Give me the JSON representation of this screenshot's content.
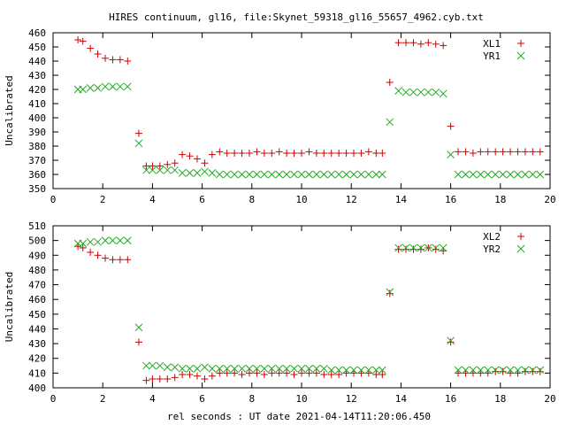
{
  "title": "HIRES continuum, gl16, file:Skynet_59318_gl16_55657_4962.cyb.txt",
  "xlabel": "rel seconds : UT date 2021-04-14T11:20:06.450",
  "colors": {
    "plus": "#cc0000",
    "cross": "#22aa22",
    "axis": "#000000"
  },
  "chart_data": [
    {
      "type": "scatter",
      "ylabel": "Uncalibrated",
      "xlim": [
        0,
        20
      ],
      "ylim": [
        350,
        460
      ],
      "xticks": [
        0,
        2,
        4,
        6,
        8,
        10,
        12,
        14,
        16,
        18,
        20
      ],
      "yticks": [
        350,
        360,
        370,
        380,
        390,
        400,
        410,
        420,
        430,
        440,
        450,
        460
      ],
      "legend_position": "top-right",
      "series": [
        {
          "name": "XL1",
          "marker": "plus",
          "color": "#cc0000",
          "x": [
            1.0,
            1.2,
            1.5,
            1.8,
            2.1,
            2.4,
            2.7,
            3.0,
            3.45,
            3.75,
            4.0,
            4.3,
            4.6,
            4.9,
            5.2,
            5.5,
            5.8,
            6.1,
            6.4,
            6.7,
            7.0,
            7.3,
            7.6,
            7.9,
            8.2,
            8.5,
            8.8,
            9.1,
            9.4,
            9.7,
            10.0,
            10.3,
            10.6,
            10.9,
            11.2,
            11.5,
            11.8,
            12.1,
            12.4,
            12.7,
            13.0,
            13.25,
            13.55,
            13.9,
            14.2,
            14.5,
            14.8,
            15.1,
            15.4,
            15.7,
            16.0,
            16.3,
            16.6,
            16.9,
            17.2,
            17.5,
            17.8,
            18.1,
            18.4,
            18.7,
            19.0,
            19.3,
            19.6
          ],
          "y": [
            455,
            454,
            449,
            445,
            442,
            441,
            441,
            440,
            389,
            366,
            366,
            366,
            367,
            368,
            374,
            373,
            371,
            368,
            374,
            376,
            375,
            375,
            375,
            375,
            376,
            375,
            375,
            376,
            375,
            375,
            375,
            376,
            375,
            375,
            375,
            375,
            375,
            375,
            375,
            376,
            375,
            375,
            425,
            453,
            453,
            453,
            452,
            453,
            452,
            451,
            394,
            376,
            376,
            375,
            376,
            376,
            376,
            376,
            376,
            376,
            376,
            376,
            376
          ]
        },
        {
          "name": "YR1",
          "marker": "cross",
          "color": "#22aa22",
          "x": [
            1.0,
            1.2,
            1.5,
            1.8,
            2.1,
            2.4,
            2.7,
            3.0,
            3.45,
            3.75,
            4.0,
            4.3,
            4.6,
            4.9,
            5.2,
            5.5,
            5.8,
            6.1,
            6.4,
            6.7,
            7.0,
            7.3,
            7.6,
            7.9,
            8.2,
            8.5,
            8.8,
            9.1,
            9.4,
            9.7,
            10.0,
            10.3,
            10.6,
            10.9,
            11.2,
            11.5,
            11.8,
            12.1,
            12.4,
            12.7,
            13.0,
            13.25,
            13.55,
            13.9,
            14.2,
            14.5,
            14.8,
            15.1,
            15.4,
            15.7,
            16.0,
            16.3,
            16.6,
            16.9,
            17.2,
            17.5,
            17.8,
            18.1,
            18.4,
            18.7,
            19.0,
            19.3,
            19.6
          ],
          "y": [
            420,
            420,
            421,
            421,
            422,
            422,
            422,
            422,
            382,
            363,
            363,
            363,
            363,
            363,
            361,
            361,
            361,
            362,
            361,
            360,
            360,
            360,
            360,
            360,
            360,
            360,
            360,
            360,
            360,
            360,
            360,
            360,
            360,
            360,
            360,
            360,
            360,
            360,
            360,
            360,
            360,
            360,
            397,
            419,
            418,
            418,
            418,
            418,
            418,
            417,
            374,
            360,
            360,
            360,
            360,
            360,
            360,
            360,
            360,
            360,
            360,
            360,
            360
          ]
        }
      ]
    },
    {
      "type": "scatter",
      "ylabel": "Uncalibrated",
      "xlim": [
        0,
        20
      ],
      "ylim": [
        400,
        510
      ],
      "xticks": [
        0,
        2,
        4,
        6,
        8,
        10,
        12,
        14,
        16,
        18,
        20
      ],
      "yticks": [
        400,
        410,
        420,
        430,
        440,
        450,
        460,
        470,
        480,
        490,
        500,
        510
      ],
      "legend_position": "top-right",
      "series": [
        {
          "name": "XL2",
          "marker": "plus",
          "color": "#cc0000",
          "x": [
            1.0,
            1.2,
            1.5,
            1.8,
            2.1,
            2.4,
            2.7,
            3.0,
            3.45,
            3.75,
            4.0,
            4.3,
            4.6,
            4.9,
            5.2,
            5.5,
            5.8,
            6.1,
            6.4,
            6.7,
            7.0,
            7.3,
            7.6,
            7.9,
            8.2,
            8.5,
            8.8,
            9.1,
            9.4,
            9.7,
            10.0,
            10.3,
            10.6,
            10.9,
            11.2,
            11.5,
            11.8,
            12.1,
            12.4,
            12.7,
            13.0,
            13.25,
            13.55,
            13.9,
            14.2,
            14.5,
            14.8,
            15.1,
            15.4,
            15.7,
            16.0,
            16.3,
            16.6,
            16.9,
            17.2,
            17.5,
            17.8,
            18.1,
            18.4,
            18.7,
            19.0,
            19.3,
            19.6
          ],
          "y": [
            496,
            495,
            492,
            490,
            488,
            487,
            487,
            487,
            431,
            405,
            406,
            406,
            406,
            407,
            409,
            409,
            408,
            406,
            408,
            410,
            410,
            410,
            409,
            410,
            410,
            409,
            410,
            410,
            410,
            409,
            410,
            410,
            410,
            409,
            409,
            409,
            410,
            410,
            410,
            410,
            409,
            409,
            464,
            494,
            494,
            494,
            494,
            495,
            494,
            493,
            431,
            410,
            410,
            410,
            410,
            410,
            411,
            411,
            410,
            410,
            411,
            411,
            411
          ]
        },
        {
          "name": "YR2",
          "marker": "cross",
          "color": "#22aa22",
          "x": [
            1.0,
            1.2,
            1.5,
            1.8,
            2.1,
            2.4,
            2.7,
            3.0,
            3.45,
            3.75,
            4.0,
            4.3,
            4.6,
            4.9,
            5.2,
            5.5,
            5.8,
            6.1,
            6.4,
            6.7,
            7.0,
            7.3,
            7.6,
            7.9,
            8.2,
            8.5,
            8.8,
            9.1,
            9.4,
            9.7,
            10.0,
            10.3,
            10.6,
            10.9,
            11.2,
            11.5,
            11.8,
            12.1,
            12.4,
            12.7,
            13.0,
            13.25,
            13.55,
            13.9,
            14.2,
            14.5,
            14.8,
            15.1,
            15.4,
            15.7,
            16.0,
            16.3,
            16.6,
            16.9,
            17.2,
            17.5,
            17.8,
            18.1,
            18.4,
            18.7,
            19.0,
            19.3,
            19.6
          ],
          "y": [
            498,
            498,
            499,
            499,
            500,
            500,
            500,
            500,
            441,
            415,
            415,
            415,
            414,
            414,
            413,
            413,
            413,
            414,
            413,
            413,
            413,
            413,
            413,
            413,
            413,
            413,
            413,
            413,
            413,
            413,
            413,
            413,
            413,
            413,
            412,
            412,
            412,
            412,
            412,
            412,
            412,
            412,
            465,
            495,
            495,
            495,
            495,
            495,
            495,
            495,
            432,
            412,
            412,
            412,
            412,
            412,
            412,
            412,
            412,
            412,
            412,
            412,
            412
          ]
        }
      ]
    }
  ]
}
